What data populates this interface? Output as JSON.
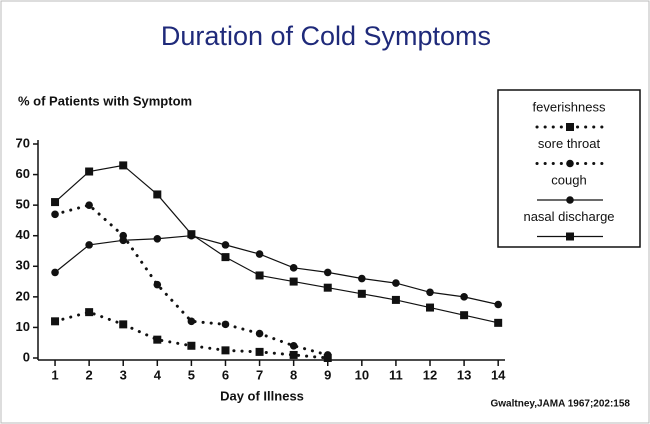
{
  "chart_data": {
    "type": "line",
    "title": "Duration of Cold Symptoms",
    "ylabel": "% of Patients with Symptom",
    "xlabel": "Day of Illness",
    "source": "Gwaltney,JAMA 1967;202:158",
    "x": [
      1,
      2,
      3,
      4,
      5,
      6,
      7,
      8,
      9,
      10,
      11,
      12,
      13,
      14
    ],
    "series": [
      {
        "name": "feverishness",
        "color": "#111111",
        "dash": "dotted",
        "marker": "square",
        "values": [
          12,
          15,
          11,
          6,
          4,
          2.5,
          2,
          1,
          0,
          null,
          null,
          null,
          null,
          null
        ]
      },
      {
        "name": "sore throat",
        "color": "#111111",
        "dash": "dotted",
        "marker": "circle",
        "values": [
          47,
          50,
          40,
          24,
          12,
          11,
          8,
          4,
          1,
          null,
          null,
          null,
          null,
          null
        ]
      },
      {
        "name": "cough",
        "color": "#111111",
        "dash": "solid",
        "marker": "circle",
        "values": [
          28,
          37,
          38.5,
          39,
          40,
          37,
          34,
          29.5,
          28,
          26,
          24.5,
          21.5,
          20,
          17.5
        ]
      },
      {
        "name": "nasal discharge",
        "color": "#111111",
        "dash": "solid",
        "marker": "square",
        "values": [
          51,
          61,
          63,
          53.5,
          40.5,
          33,
          27,
          25,
          23,
          21,
          19,
          16.5,
          14,
          11.5
        ]
      }
    ],
    "xlim": [
      0.5,
      14.2
    ],
    "xticks": [
      1,
      2,
      3,
      4,
      5,
      6,
      7,
      8,
      9,
      10,
      11,
      12,
      13,
      14
    ],
    "ylim": [
      0,
      70
    ],
    "yticks": [
      0,
      10,
      20,
      30,
      40,
      50,
      60,
      70
    ]
  }
}
